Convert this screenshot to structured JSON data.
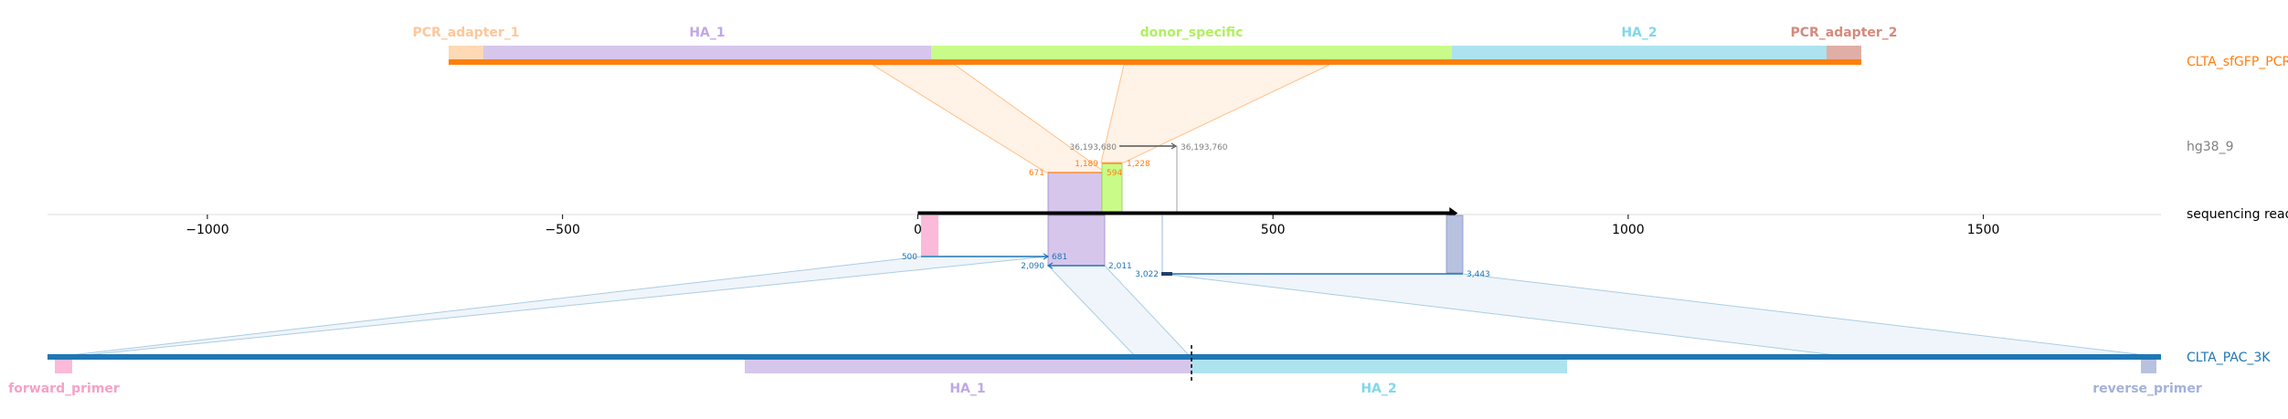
{
  "colors": {
    "pcr_adapter_1": "#fdd9b5",
    "pcr_adapter_1_label": "#fdc79b",
    "ha_1": "#d7c6ec",
    "ha_1_label": "#bfa8e6",
    "donor_specific": "#c9fb89",
    "donor_specific_label": "#b0f060",
    "ha_2": "#ade3ee",
    "ha_2_label": "#7fd8ea",
    "pcr_adapter_2": "#e0aea5",
    "pcr_adapter_2_label": "#d58a7d",
    "orange": "#ff7f0e",
    "blue": "#1f77b4",
    "gray": "#808080",
    "forward_primer": "#fbbad9",
    "forward_primer_label": "#f5a1c8",
    "reverse_primer": "#b8c2e0",
    "reverse_primer_label": "#a3b1da"
  },
  "tracks": {
    "top": "CLTA_sfGFP_PCR",
    "genome": "hg38_9",
    "read": "sequencing read",
    "bottom": "CLTA_PAC_3K"
  },
  "top_features": {
    "pcr_adapter_1": "PCR_adapter_1",
    "ha_1": "HA_1",
    "donor_specific": "donor_specific",
    "ha_2": "HA_2",
    "pcr_adapter_2": "PCR_adapter_2"
  },
  "bottom_features": {
    "forward_primer": "forward_primer",
    "ha_1": "HA_1",
    "ha_2": "HA_2",
    "reverse_primer": "reverse_primer"
  },
  "axis": {
    "min": -1225,
    "max": 1750,
    "ticks": [
      {
        "value": -1000,
        "label": "−1000"
      },
      {
        "value": -500,
        "label": "−500"
      },
      {
        "value": 0,
        "label": "0"
      },
      {
        "value": 500,
        "label": "500"
      },
      {
        "value": 1000,
        "label": "1000"
      },
      {
        "value": 1500,
        "label": "1500"
      }
    ]
  },
  "read": {
    "start": 0,
    "end": 760
  },
  "genome_coords": {
    "start": "36,193,680",
    "end": "36,193,760",
    "orange_a": "1,189",
    "orange_b": "1,228",
    "orange_left": "671",
    "orange_right": "594"
  },
  "bottom_coords": {
    "a_start": "500",
    "a_end": "681",
    "b_start": "2,090",
    "b_end": "2,011",
    "c_start": "3,022",
    "c_end": "3,443"
  }
}
